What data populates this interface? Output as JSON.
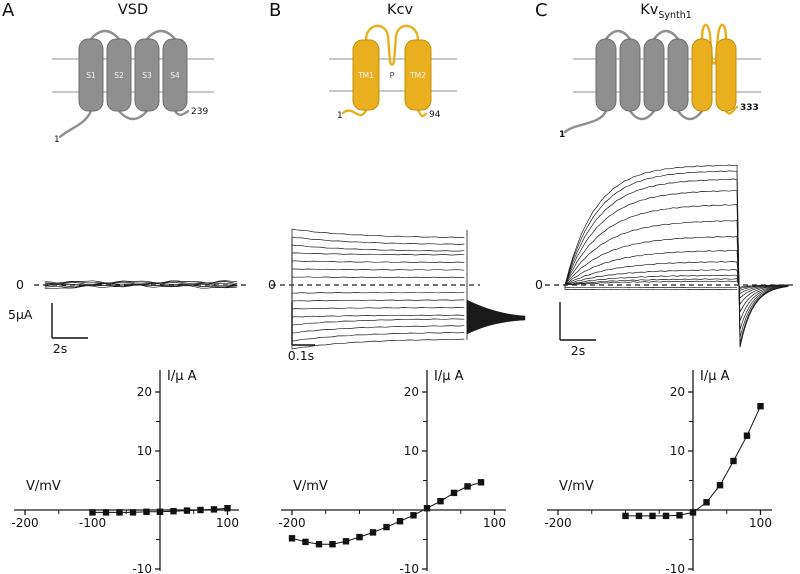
{
  "colors": {
    "gray": "#8f8f8f",
    "gray_stroke": "#6e6e6e",
    "yellow": "#e9af1e",
    "yellow_stroke": "#c08f0c",
    "trace": "#1a1a1a",
    "axis": "#1a1a1a",
    "membrane": "#a8a8a8"
  },
  "panels": [
    {
      "letter": "A",
      "title_main": "VSD",
      "title_sub": "",
      "schematic": {
        "segments": [
          {
            "label": "S1",
            "color": "gray"
          },
          {
            "label": "S2",
            "color": "gray"
          },
          {
            "label": "S3",
            "color": "gray"
          },
          {
            "label": "S4",
            "color": "gray"
          }
        ],
        "loops": [
          {
            "from": 0,
            "to": 1,
            "side": "top"
          },
          {
            "from": 1,
            "to": 2,
            "side": "bottom"
          },
          {
            "from": 2,
            "to": 3,
            "side": "top"
          }
        ],
        "ploop": null,
        "loop_color": "gray",
        "nterm": {
          "label": "1",
          "bold": false
        },
        "nterm_color": "gray",
        "cterm": {
          "label": "239",
          "bold": false
        },
        "cterm_color": "gray"
      },
      "traces": {
        "type": "flat",
        "zero_label": "0",
        "scale_current": "5µA",
        "scale_time": "2s"
      }
    },
    {
      "letter": "B",
      "title_main": "Kcv",
      "title_sub": "",
      "schematic": {
        "segments": [
          {
            "label": "TM1",
            "color": "yellow"
          },
          {
            "label": "TM2",
            "color": "yellow"
          }
        ],
        "loops": [],
        "ploop": {
          "from": 0,
          "to": 1,
          "label": "P"
        },
        "ploop_color": "yellow",
        "loop_color": "yellow",
        "nterm": {
          "label": "1",
          "bold": false
        },
        "nterm_color": "yellow",
        "cterm": {
          "label": "94",
          "bold": false
        },
        "cterm_color": "yellow"
      },
      "traces": {
        "type": "kcv",
        "zero_label": "0",
        "scale_current": "",
        "scale_time": "0.1s"
      }
    },
    {
      "letter": "C",
      "title_main": "Kv",
      "title_sub": "Synth1",
      "schematic": {
        "segments": [
          {
            "label": "",
            "color": "gray"
          },
          {
            "label": "",
            "color": "gray"
          },
          {
            "label": "",
            "color": "gray"
          },
          {
            "label": "",
            "color": "gray"
          },
          {
            "label": "",
            "color": "yellow"
          },
          {
            "label": "",
            "color": "yellow"
          }
        ],
        "loops": [
          {
            "from": 0,
            "to": 1,
            "side": "top"
          },
          {
            "from": 1,
            "to": 2,
            "side": "bottom"
          },
          {
            "from": 2,
            "to": 3,
            "side": "top"
          },
          {
            "from": 3,
            "to": 4,
            "side": "bottom"
          }
        ],
        "ploop": {
          "from": 4,
          "to": 5,
          "label": ""
        },
        "ploop_color": "yellow",
        "loop_color": "gray",
        "nterm": {
          "label": "1",
          "bold": true
        },
        "nterm_color": "gray",
        "cterm": {
          "label": "333",
          "bold": true
        },
        "cterm_color": "yellow"
      },
      "traces": {
        "type": "kvsynth",
        "zero_label": "0",
        "scale_current": "",
        "scale_time": "2s"
      }
    }
  ],
  "chart_data": [
    {
      "type": "scatter",
      "xlabel": "V/mV",
      "ylabel": "I/µ A",
      "xlim": [
        -230,
        125
      ],
      "ylim": [
        -11,
        22
      ],
      "xticks_labeled": [
        -200,
        -100,
        100
      ],
      "xticks_minor": [
        -150,
        -50,
        50
      ],
      "yticks_labeled": [
        20,
        10,
        -10
      ],
      "yticks_minor": [
        15,
        5,
        -5
      ],
      "x": [
        -100,
        -80,
        -60,
        -40,
        -20,
        0,
        20,
        40,
        60,
        80,
        100
      ],
      "y": [
        -0.4,
        -0.4,
        -0.4,
        -0.4,
        -0.3,
        -0.3,
        -0.2,
        -0.1,
        0.0,
        0.1,
        0.3
      ]
    },
    {
      "type": "scatter",
      "xlabel": "V/mV",
      "ylabel": "I/µ A",
      "xlim": [
        -230,
        125
      ],
      "ylim": [
        -11,
        22
      ],
      "xticks_labeled": [
        -200,
        100
      ],
      "xticks_minor": [
        -150,
        -100,
        -50,
        50
      ],
      "yticks_labeled": [
        20,
        10,
        -10
      ],
      "yticks_minor": [
        15,
        5,
        -5
      ],
      "x": [
        -200,
        -180,
        -160,
        -140,
        -120,
        -100,
        -80,
        -60,
        -40,
        -20,
        0,
        20,
        40,
        60,
        80
      ],
      "y": [
        -4.8,
        -5.4,
        -5.8,
        -5.8,
        -5.3,
        -4.6,
        -3.8,
        -2.9,
        -1.9,
        -0.9,
        0.3,
        1.5,
        2.9,
        4.0,
        4.7
      ]
    },
    {
      "type": "scatter",
      "xlabel": "V/mV",
      "ylabel": "I/µ A",
      "xlim": [
        -230,
        125
      ],
      "ylim": [
        -11,
        22
      ],
      "xticks_labeled": [
        -200,
        100
      ],
      "xticks_minor": [
        -150,
        -100,
        -50,
        50
      ],
      "yticks_labeled": [
        20,
        10,
        -10
      ],
      "yticks_minor": [
        15,
        5,
        -5
      ],
      "x": [
        -100,
        -80,
        -60,
        -40,
        -20,
        0,
        20,
        40,
        60,
        80,
        100
      ],
      "y": [
        -1.0,
        -1.0,
        -1.0,
        -1.0,
        -0.9,
        -0.4,
        1.3,
        4.2,
        8.3,
        12.6,
        17.6
      ]
    }
  ]
}
